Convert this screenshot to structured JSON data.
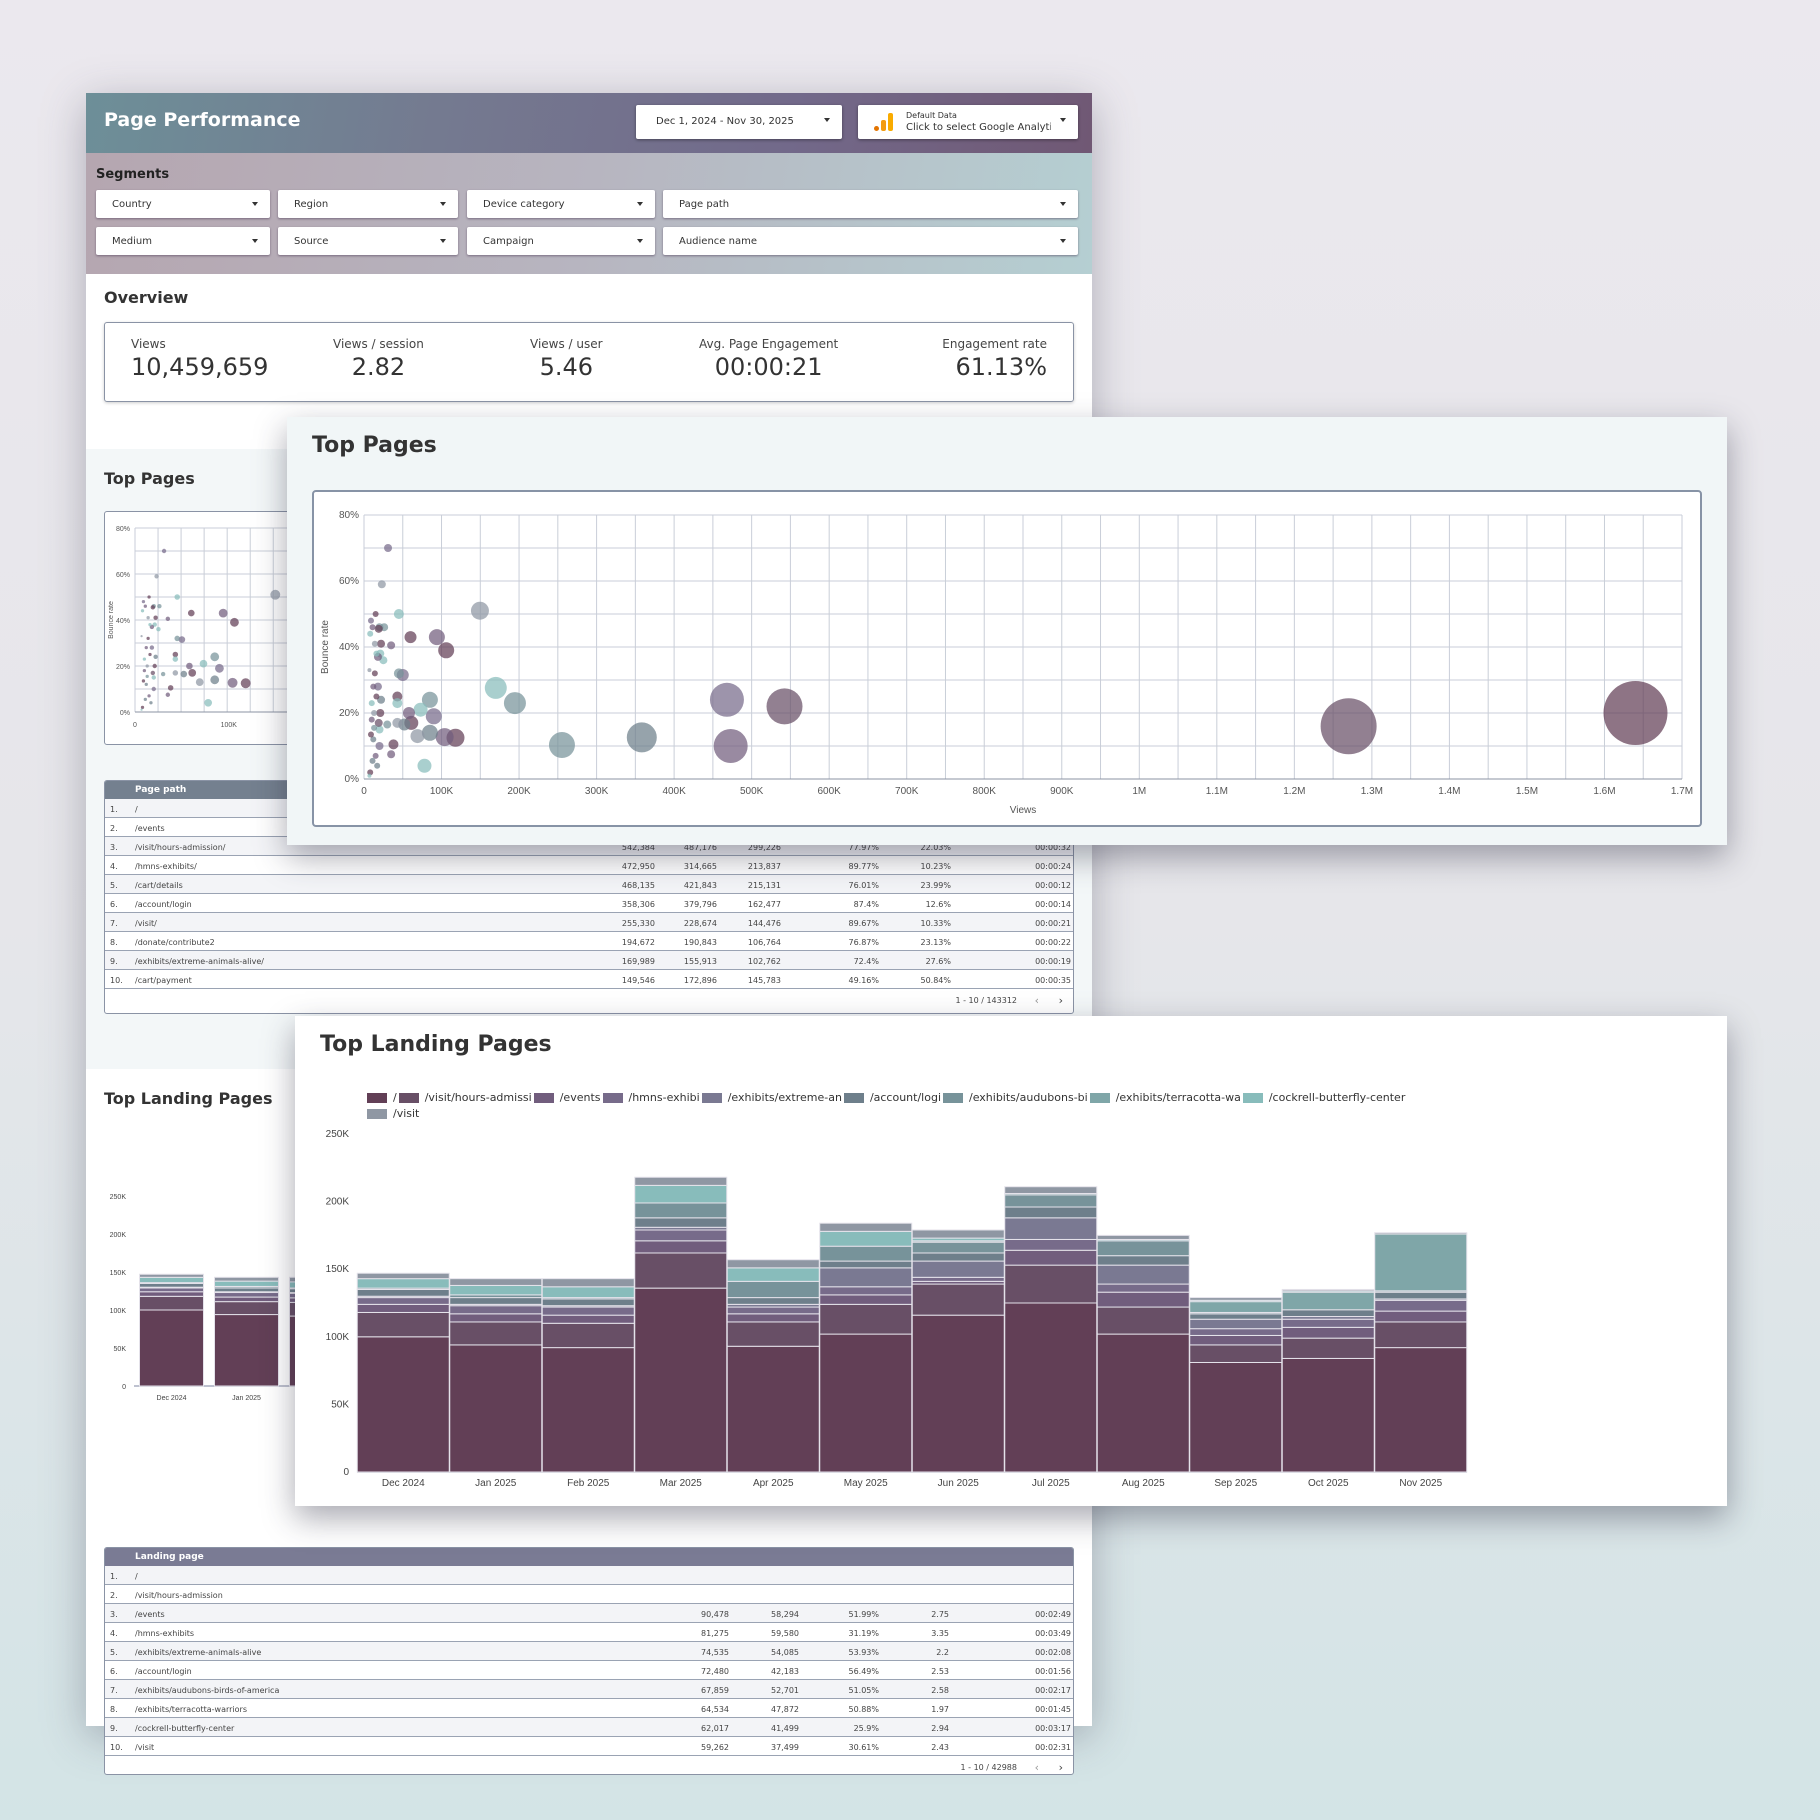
{
  "header": {
    "title": "Page Performance",
    "date_range": "Dec 1, 2024 - Nov 30, 2025",
    "data_source_line1": "Default Data",
    "data_source_line2": "Click to select Google Analytics"
  },
  "segments": {
    "title": "Segments",
    "filters": [
      "Country",
      "Region",
      "Device category",
      "Page path",
      "Medium",
      "Source",
      "Campaign",
      "Audience name"
    ]
  },
  "overview": {
    "title": "Overview",
    "kpis": [
      {
        "label": "Views",
        "value": "10,459,659"
      },
      {
        "label": "Views / session",
        "value": "2.82"
      },
      {
        "label": "Views / user",
        "value": "5.46"
      },
      {
        "label": "Avg. Page Engagement",
        "value": "00:00:21"
      },
      {
        "label": "Engagement rate",
        "value": "61.13%"
      }
    ]
  },
  "top_pages": {
    "title": "Top Pages",
    "table_header": "Page path",
    "rows": [
      [
        "1.",
        "/",
        "",
        "",
        "",
        "",
        "",
        ""
      ],
      [
        "2.",
        "/events",
        "",
        "",
        "",
        "",
        "",
        ""
      ],
      [
        "3.",
        "/visit/hours-admission/",
        "542,384",
        "487,176",
        "299,226",
        "77.97%",
        "22.03%",
        "00:00:32"
      ],
      [
        "4.",
        "/hmns-exhibits/",
        "472,950",
        "314,665",
        "213,837",
        "89.77%",
        "10.23%",
        "00:00:24"
      ],
      [
        "5.",
        "/cart/details",
        "468,135",
        "421,843",
        "215,131",
        "76.01%",
        "23.99%",
        "00:00:12"
      ],
      [
        "6.",
        "/account/login",
        "358,306",
        "379,796",
        "162,477",
        "87.4%",
        "12.6%",
        "00:00:14"
      ],
      [
        "7.",
        "/visit/",
        "255,330",
        "228,674",
        "144,476",
        "89.67%",
        "10.33%",
        "00:00:21"
      ],
      [
        "8.",
        "/donate/contribute2",
        "194,672",
        "190,843",
        "106,764",
        "76.87%",
        "23.13%",
        "00:00:22"
      ],
      [
        "9.",
        "/exhibits/extreme-animals-alive/",
        "169,989",
        "155,913",
        "102,762",
        "72.4%",
        "27.6%",
        "00:00:19"
      ],
      [
        "10.",
        "/cart/payment",
        "149,546",
        "172,896",
        "145,783",
        "49.16%",
        "50.84%",
        "00:00:35"
      ]
    ],
    "pagination": "1 - 10 / 143312"
  },
  "top_landing_pages": {
    "title": "Top Landing Pages",
    "table_header": "Landing page",
    "rows": [
      [
        "1.",
        "/",
        "",
        "",
        "",
        "",
        ""
      ],
      [
        "2.",
        "/visit/hours-admission",
        "",
        "",
        "",
        "",
        ""
      ],
      [
        "3.",
        "/events",
        "90,478",
        "58,294",
        "51.99%",
        "2.75",
        "00:02:49"
      ],
      [
        "4.",
        "/hmns-exhibits",
        "81,275",
        "59,580",
        "31.19%",
        "3.35",
        "00:03:49"
      ],
      [
        "5.",
        "/exhibits/extreme-animals-alive",
        "74,535",
        "54,085",
        "53.93%",
        "2.2",
        "00:02:08"
      ],
      [
        "6.",
        "/account/login",
        "72,480",
        "42,183",
        "56.49%",
        "2.53",
        "00:01:56"
      ],
      [
        "7.",
        "/exhibits/audubons-birds-of-america",
        "67,859",
        "52,701",
        "51.05%",
        "2.58",
        "00:02:17"
      ],
      [
        "8.",
        "/exhibits/terracotta-warriors",
        "64,534",
        "47,872",
        "50.88%",
        "1.97",
        "00:01:45"
      ],
      [
        "9.",
        "/cockrell-butterfly-center",
        "62,017",
        "41,499",
        "25.9%",
        "2.94",
        "00:03:17"
      ],
      [
        "10.",
        "/visit",
        "59,262",
        "37,499",
        "30.61%",
        "2.43",
        "00:02:31"
      ]
    ],
    "pagination": "1 - 10 / 42988"
  },
  "colors": {
    "series": [
      "#623f56",
      "#684f66",
      "#715d7d",
      "#776b8a",
      "#7a7992",
      "#6e7f8b",
      "#77939a",
      "#7fa6a8",
      "#88bcbb",
      "#8f97a3"
    ]
  },
  "chart_data": [
    {
      "type": "scatter",
      "title": "Top Pages",
      "xlabel": "Views",
      "ylabel": "Bounce rate",
      "xlim": [
        0,
        1700000
      ],
      "ylim": [
        0,
        80
      ],
      "x_ticks": [
        "0",
        "100K",
        "200K",
        "300K",
        "400K",
        "500K",
        "600K",
        "700K",
        "800K",
        "900K",
        "1M",
        "1.1M",
        "1.2M",
        "1.3M",
        "1.4M",
        "1.5M",
        "1.6M",
        "1.7M"
      ],
      "y_ticks": [
        "0%",
        "20%",
        "40%",
        "60%",
        "80%"
      ],
      "points": [
        {
          "x": 1640000,
          "y": 20,
          "r": 32,
          "c": 0
        },
        {
          "x": 1270000,
          "y": 16,
          "r": 28,
          "c": 1
        },
        {
          "x": 542384,
          "y": 22,
          "r": 18,
          "c": 1
        },
        {
          "x": 472950,
          "y": 10,
          "r": 17,
          "c": 2
        },
        {
          "x": 468135,
          "y": 24,
          "r": 17,
          "c": 3
        },
        {
          "x": 358306,
          "y": 12.6,
          "r": 15,
          "c": 5
        },
        {
          "x": 255330,
          "y": 10.3,
          "r": 13,
          "c": 6
        },
        {
          "x": 194672,
          "y": 23,
          "r": 11,
          "c": 6
        },
        {
          "x": 169989,
          "y": 27.6,
          "r": 11,
          "c": 8
        },
        {
          "x": 149546,
          "y": 51,
          "r": 9,
          "c": 9
        },
        {
          "x": 118000,
          "y": 12.5,
          "r": 9,
          "c": 0
        },
        {
          "x": 104000,
          "y": 12.7,
          "r": 9,
          "c": 2
        },
        {
          "x": 106000,
          "y": 39,
          "r": 8,
          "c": 0
        },
        {
          "x": 94000,
          "y": 43,
          "r": 8,
          "c": 2
        },
        {
          "x": 90000,
          "y": 19,
          "r": 8,
          "c": 3
        },
        {
          "x": 85000,
          "y": 24,
          "r": 8,
          "c": 6
        },
        {
          "x": 85000,
          "y": 14,
          "r": 8,
          "c": 5
        },
        {
          "x": 78000,
          "y": 4,
          "r": 7,
          "c": 8
        },
        {
          "x": 73000,
          "y": 21,
          "r": 7,
          "c": 8
        },
        {
          "x": 69000,
          "y": 13,
          "r": 7,
          "c": 9
        },
        {
          "x": 61000,
          "y": 17,
          "r": 7,
          "c": 0
        },
        {
          "x": 58000,
          "y": 20,
          "r": 6,
          "c": 2
        },
        {
          "x": 60000,
          "y": 43,
          "r": 6,
          "c": 0
        },
        {
          "x": 52000,
          "y": 16.5,
          "r": 6,
          "c": 5
        },
        {
          "x": 50000,
          "y": 31.5,
          "r": 6,
          "c": 3
        },
        {
          "x": 45000,
          "y": 32,
          "r": 5,
          "c": 6
        },
        {
          "x": 45000,
          "y": 50,
          "r": 5,
          "c": 8
        },
        {
          "x": 43000,
          "y": 17,
          "r": 5,
          "c": 9
        },
        {
          "x": 43000,
          "y": 25,
          "r": 5,
          "c": 0
        },
        {
          "x": 43000,
          "y": 23,
          "r": 5,
          "c": 8
        },
        {
          "x": 38000,
          "y": 10.5,
          "r": 5,
          "c": 0
        },
        {
          "x": 35000,
          "y": 7.5,
          "r": 4,
          "c": 2
        },
        {
          "x": 35000,
          "y": 40.5,
          "r": 4,
          "c": 2
        },
        {
          "x": 31000,
          "y": 70,
          "r": 4,
          "c": 3
        },
        {
          "x": 30000,
          "y": 16.5,
          "r": 4,
          "c": 6
        },
        {
          "x": 26000,
          "y": 46,
          "r": 4,
          "c": 6
        },
        {
          "x": 25000,
          "y": 36,
          "r": 4,
          "c": 8
        },
        {
          "x": 23000,
          "y": 59,
          "r": 4,
          "c": 9
        },
        {
          "x": 22000,
          "y": 41,
          "r": 4,
          "c": 0
        },
        {
          "x": 22000,
          "y": 24,
          "r": 4,
          "c": 5
        },
        {
          "x": 21000,
          "y": 38,
          "r": 4,
          "c": 8
        },
        {
          "x": 21000,
          "y": 20,
          "r": 4,
          "c": 0
        },
        {
          "x": 20000,
          "y": 46,
          "r": 4,
          "c": 6
        },
        {
          "x": 20000,
          "y": 15,
          "r": 4,
          "c": 8
        },
        {
          "x": 20000,
          "y": 10,
          "r": 4,
          "c": 3
        },
        {
          "x": 19000,
          "y": 45.5,
          "r": 4,
          "c": 0
        },
        {
          "x": 19000,
          "y": 17,
          "r": 4,
          "c": 1
        },
        {
          "x": 18000,
          "y": 37,
          "r": 4,
          "c": 2
        },
        {
          "x": 18000,
          "y": 28,
          "r": 4,
          "c": 3
        },
        {
          "x": 17000,
          "y": 4,
          "r": 3,
          "c": 5
        },
        {
          "x": 16000,
          "y": 25,
          "r": 3,
          "c": 0
        },
        {
          "x": 16000,
          "y": 38,
          "r": 3,
          "c": 8
        },
        {
          "x": 15000,
          "y": 50,
          "r": 3,
          "c": 0
        },
        {
          "x": 15000,
          "y": 7,
          "r": 3,
          "c": 2
        },
        {
          "x": 14000,
          "y": 41,
          "r": 3,
          "c": 9
        },
        {
          "x": 14000,
          "y": 32,
          "r": 3,
          "c": 0
        },
        {
          "x": 13000,
          "y": 20,
          "r": 3,
          "c": 9
        },
        {
          "x": 13000,
          "y": 15.5,
          "r": 3,
          "c": 6
        },
        {
          "x": 12000,
          "y": 28,
          "r": 3,
          "c": 2
        },
        {
          "x": 12000,
          "y": 12,
          "r": 3,
          "c": 5
        },
        {
          "x": 11000,
          "y": 46,
          "r": 3,
          "c": 2
        },
        {
          "x": 11000,
          "y": 5.5,
          "r": 3,
          "c": 5
        },
        {
          "x": 10000,
          "y": 23,
          "r": 3,
          "c": 8
        },
        {
          "x": 10000,
          "y": 18,
          "r": 3,
          "c": 2
        },
        {
          "x": 9000,
          "y": 48,
          "r": 3,
          "c": 3
        },
        {
          "x": 9000,
          "y": 13.5,
          "r": 3,
          "c": 0
        },
        {
          "x": 8000,
          "y": 44,
          "r": 3,
          "c": 8
        },
        {
          "x": 8000,
          "y": 2,
          "r": 3,
          "c": 0
        },
        {
          "x": 7000,
          "y": 33,
          "r": 2,
          "c": 9
        },
        {
          "x": 7000,
          "y": 1,
          "r": 2,
          "c": 8
        }
      ]
    },
    {
      "type": "bar",
      "stacked": true,
      "title": "Top Landing Pages",
      "ylim": [
        0,
        250000
      ],
      "y_ticks": [
        "0",
        "50K",
        "100K",
        "150K",
        "200K",
        "250K"
      ],
      "categories": [
        "Dec 2024",
        "Jan 2025",
        "Feb 2025",
        "Mar 2025",
        "Apr 2025",
        "May 2025",
        "Jun 2025",
        "Jul 2025",
        "Aug 2025",
        "Sep 2025",
        "Oct 2025",
        "Nov 2025"
      ],
      "legend": [
        "/",
        "/visit/hours-admissi",
        "/events",
        "/hmns-exhibi",
        "/exhibits/extreme-an",
        "/account/logi",
        "/exhibits/audubons-bi",
        "/exhibits/terracotta-wa",
        "/cockrell-butterfly-center",
        "/visit"
      ],
      "series": [
        {
          "name": "/",
          "values": [
            100000,
            94000,
            92000,
            136000,
            93000,
            102000,
            116000,
            125000,
            102000,
            81000,
            84000,
            92000
          ]
        },
        {
          "name": "/visit/hours-admission",
          "values": [
            18000,
            17000,
            18000,
            26000,
            18000,
            22000,
            23000,
            28000,
            20000,
            13000,
            15000,
            19000
          ]
        },
        {
          "name": "/events",
          "values": [
            6000,
            6000,
            6000,
            9000,
            6000,
            7000,
            2000,
            11000,
            11000,
            7000,
            8000,
            8000
          ]
        },
        {
          "name": "/hmns-exhibits",
          "values": [
            5000,
            6000,
            6000,
            8000,
            5000,
            6000,
            3000,
            8000,
            6000,
            5000,
            6000,
            8000
          ]
        },
        {
          "name": "/exhibits/extreme-animals-alive",
          "values": [
            1000,
            1000,
            1000,
            2000,
            2000,
            14000,
            12000,
            16000,
            14000,
            7000,
            2000,
            1000
          ]
        },
        {
          "name": "/account/login",
          "values": [
            5000,
            5000,
            5000,
            7000,
            5000,
            5000,
            6000,
            8000,
            7000,
            4000,
            5000,
            5000
          ]
        },
        {
          "name": "/exhibits/audubons-birds-of-america",
          "values": [
            1000,
            2000,
            1000,
            11000,
            12000,
            11000,
            8000,
            9000,
            11000,
            1000,
            0,
            1000
          ]
        },
        {
          "name": "/exhibits/terracotta-warriors",
          "values": [
            0,
            0,
            0,
            0,
            0,
            0,
            1000,
            1000,
            0,
            8000,
            13000,
            42000
          ]
        },
        {
          "name": "/cockrell-butterfly-center",
          "values": [
            7000,
            7000,
            8000,
            13000,
            10000,
            11000,
            2000,
            0,
            1000,
            1000,
            1000,
            0
          ]
        },
        {
          "name": "/visit",
          "values": [
            4000,
            5000,
            6000,
            6000,
            6000,
            6000,
            6000,
            5000,
            3000,
            2000,
            1000,
            1000
          ]
        }
      ]
    }
  ]
}
